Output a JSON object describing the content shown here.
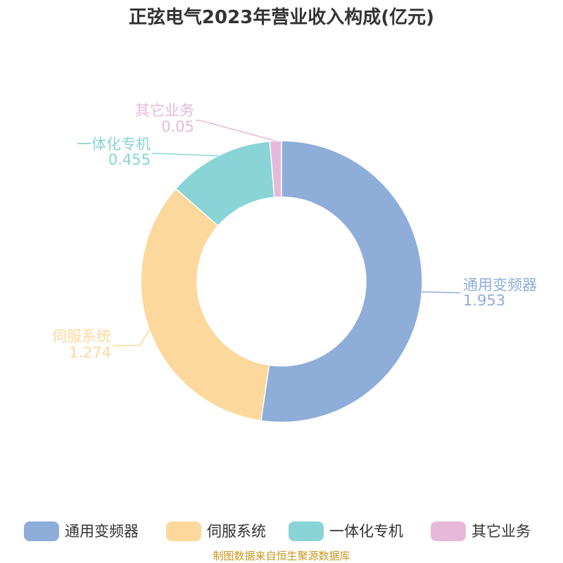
{
  "chart_data": {
    "type": "pie",
    "variant": "donut",
    "title": "正弦电气2023年营业收入构成(亿元)",
    "categories": [
      "通用变频器",
      "伺服系统",
      "一体化专机",
      "其它业务"
    ],
    "values": [
      1.953,
      1.274,
      0.455,
      0.05
    ],
    "value_labels": [
      "1.953",
      "1.274",
      "0.455",
      "0.05"
    ],
    "colors": [
      "#8eadd9",
      "#fdd89c",
      "#88d4d6",
      "#e6b9da"
    ],
    "legend_position": "bottom",
    "start_angle_deg": 0,
    "direction": "clockwise"
  },
  "source_note": "制图数据来自恒生聚源数据库"
}
